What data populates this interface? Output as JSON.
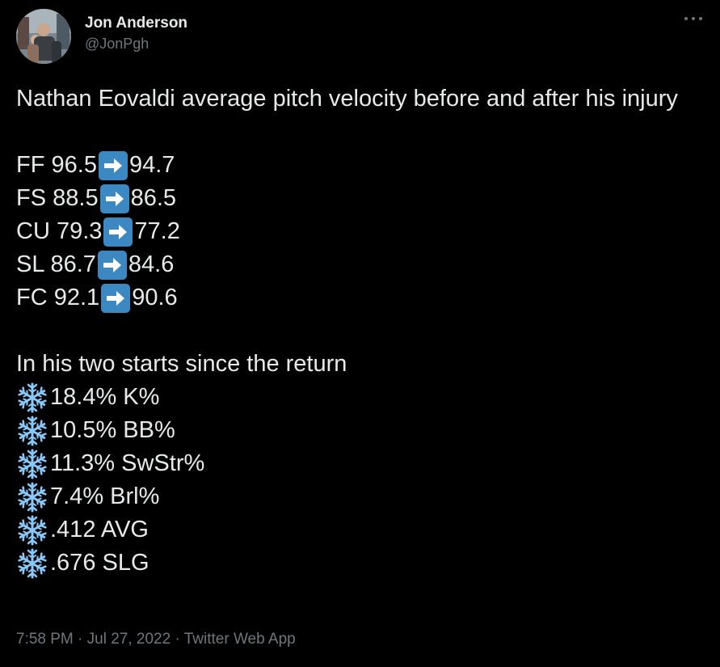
{
  "author": {
    "display_name": "Jon Anderson",
    "handle": "@JonPgh",
    "avatar_icon": "profile-photo"
  },
  "tweet": {
    "intro": "Nathan Eovaldi average pitch velocity before and after his injury",
    "pitches": [
      {
        "type": "FF",
        "before": "96.5",
        "after": "94.7"
      },
      {
        "type": "FS",
        "before": "88.5",
        "after": "86.5"
      },
      {
        "type": "CU",
        "before": "79.3",
        "after": "77.2"
      },
      {
        "type": "SL",
        "before": "86.7",
        "after": "84.6"
      },
      {
        "type": "FC",
        "before": "92.1",
        "after": "90.6"
      }
    ],
    "starts_heading": "In his two starts since the return",
    "stats": [
      {
        "value": "18.4% K%"
      },
      {
        "value": "10.5% BB%"
      },
      {
        "value": "11.3% SwStr%"
      },
      {
        "value": "7.4% Brl%"
      },
      {
        "value": ".412 AVG"
      },
      {
        "value": ".676 SLG"
      }
    ],
    "arrow_icon": "right-arrow-emoji",
    "stat_icon": "snowflake-emoji"
  },
  "footer": {
    "time": "7:58 PM",
    "separator": " · ",
    "date": "Jul 27, 2022",
    "app": "Twitter Web App"
  },
  "colors": {
    "background": "#000000",
    "text": "#e7e9ea",
    "muted": "#71767b",
    "arrow_emoji_bg": "#3b88c3",
    "snowflake": "#88c9f9"
  }
}
